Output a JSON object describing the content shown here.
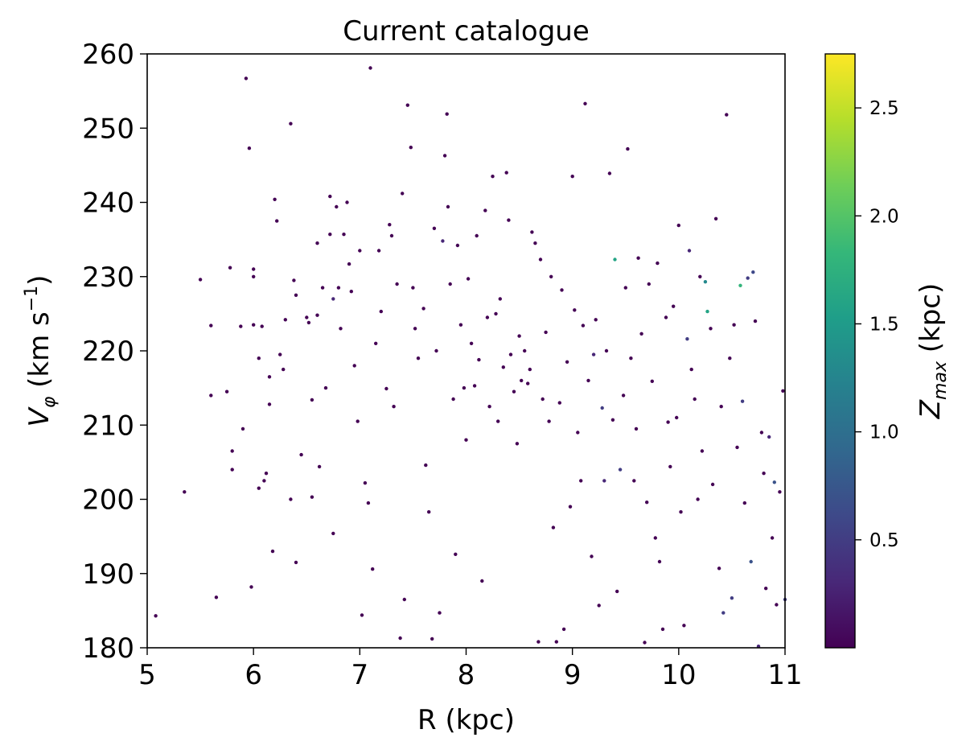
{
  "chart_data": {
    "type": "scatter",
    "title": "Current catalogue",
    "xlabel": "R (kpc)",
    "ylabel_main": "V",
    "ylabel_sub": "φ",
    "ylabel_units_pre": " (km s",
    "ylabel_units_sup": "−1",
    "ylabel_units_post": ")",
    "xlim": [
      5,
      11
    ],
    "ylim": [
      180,
      260
    ],
    "xticks": [
      5,
      6,
      7,
      8,
      9,
      10,
      11
    ],
    "yticks": [
      180,
      190,
      200,
      210,
      220,
      230,
      240,
      250,
      260
    ],
    "grid": false,
    "colorbar": {
      "label_main": "Z",
      "label_sub": "max",
      "label_units": " (kpc)",
      "range": [
        0,
        2.75
      ],
      "ticks": [
        "0.5",
        "1.0",
        "1.5",
        "2.0",
        "2.5"
      ],
      "colormap": "viridis",
      "stops": [
        "#440154",
        "#482878",
        "#3e4989",
        "#31688e",
        "#26828e",
        "#1f9e89",
        "#35b779",
        "#6ece58",
        "#b5de2b",
        "#fde725"
      ]
    },
    "marker_color_default": "#440154",
    "points": [
      [
        5.08,
        184.3,
        0.02
      ],
      [
        5.35,
        201.0,
        0.02
      ],
      [
        5.5,
        229.6,
        0.02
      ],
      [
        5.6,
        223.4,
        0.02
      ],
      [
        5.6,
        214.0,
        0.02
      ],
      [
        5.65,
        186.8,
        0.02
      ],
      [
        5.75,
        214.5,
        0.02
      ],
      [
        5.78,
        231.2,
        0.02
      ],
      [
        5.8,
        206.5,
        0.02
      ],
      [
        5.8,
        204.0,
        0.02
      ],
      [
        5.88,
        223.3,
        0.02
      ],
      [
        5.9,
        209.5,
        0.02
      ],
      [
        5.93,
        256.7,
        0.02
      ],
      [
        5.96,
        247.3,
        0.02
      ],
      [
        5.98,
        188.2,
        0.02
      ],
      [
        6.0,
        230.0,
        0.02
      ],
      [
        6.0,
        231.0,
        0.02
      ],
      [
        6.0,
        223.5,
        0.02
      ],
      [
        6.05,
        219.0,
        0.02
      ],
      [
        6.05,
        201.5,
        0.02
      ],
      [
        6.08,
        223.3,
        0.02
      ],
      [
        6.1,
        202.5,
        0.02
      ],
      [
        6.12,
        203.5,
        0.02
      ],
      [
        6.15,
        216.5,
        0.02
      ],
      [
        6.15,
        212.8,
        0.02
      ],
      [
        6.18,
        193.0,
        0.02
      ],
      [
        6.2,
        240.4,
        0.02
      ],
      [
        6.22,
        237.5,
        0.02
      ],
      [
        6.25,
        219.5,
        0.02
      ],
      [
        6.28,
        217.5,
        0.02
      ],
      [
        6.3,
        224.2,
        0.02
      ],
      [
        6.35,
        250.6,
        0.02
      ],
      [
        6.35,
        200.0,
        0.02
      ],
      [
        6.38,
        229.5,
        0.02
      ],
      [
        6.4,
        227.5,
        0.02
      ],
      [
        6.4,
        191.5,
        0.02
      ],
      [
        6.45,
        206.0,
        0.02
      ],
      [
        6.5,
        224.5,
        0.02
      ],
      [
        6.52,
        223.8,
        0.02
      ],
      [
        6.55,
        213.4,
        0.02
      ],
      [
        6.55,
        200.3,
        0.02
      ],
      [
        6.6,
        234.5,
        0.02
      ],
      [
        6.6,
        224.8,
        0.02
      ],
      [
        6.62,
        204.4,
        0.02
      ],
      [
        6.65,
        228.5,
        0.02
      ],
      [
        6.68,
        215.0,
        0.02
      ],
      [
        6.72,
        240.8,
        0.02
      ],
      [
        6.72,
        235.7,
        0.02
      ],
      [
        6.75,
        227.0,
        0.3
      ],
      [
        6.75,
        195.4,
        0.02
      ],
      [
        6.78,
        239.4,
        0.02
      ],
      [
        6.8,
        228.5,
        0.02
      ],
      [
        6.82,
        223.0,
        0.02
      ],
      [
        6.85,
        235.7,
        0.02
      ],
      [
        6.88,
        240.0,
        0.02
      ],
      [
        6.9,
        231.7,
        0.02
      ],
      [
        6.92,
        228.0,
        0.02
      ],
      [
        6.95,
        218.0,
        0.02
      ],
      [
        6.98,
        210.5,
        0.02
      ],
      [
        7.0,
        233.5,
        0.02
      ],
      [
        7.02,
        184.4,
        0.02
      ],
      [
        7.05,
        202.2,
        0.02
      ],
      [
        7.08,
        199.5,
        0.02
      ],
      [
        7.1,
        258.1,
        0.02
      ],
      [
        7.12,
        190.6,
        0.02
      ],
      [
        7.15,
        221.0,
        0.02
      ],
      [
        7.18,
        233.5,
        0.02
      ],
      [
        7.2,
        225.3,
        0.02
      ],
      [
        7.25,
        214.9,
        0.02
      ],
      [
        7.28,
        237.0,
        0.02
      ],
      [
        7.3,
        235.5,
        0.02
      ],
      [
        7.32,
        212.5,
        0.02
      ],
      [
        7.35,
        229.0,
        0.02
      ],
      [
        7.38,
        181.3,
        0.02
      ],
      [
        7.4,
        241.2,
        0.02
      ],
      [
        7.42,
        186.5,
        0.02
      ],
      [
        7.45,
        253.1,
        0.02
      ],
      [
        7.48,
        247.4,
        0.02
      ],
      [
        7.5,
        228.5,
        0.02
      ],
      [
        7.52,
        223.0,
        0.02
      ],
      [
        7.55,
        219.0,
        0.02
      ],
      [
        7.6,
        225.7,
        0.02
      ],
      [
        7.62,
        204.6,
        0.02
      ],
      [
        7.65,
        198.3,
        0.02
      ],
      [
        7.68,
        181.2,
        0.02
      ],
      [
        7.7,
        236.5,
        0.02
      ],
      [
        7.72,
        220.0,
        0.02
      ],
      [
        7.75,
        184.7,
        0.02
      ],
      [
        7.78,
        234.8,
        0.3
      ],
      [
        7.8,
        246.3,
        0.02
      ],
      [
        7.82,
        251.9,
        0.02
      ],
      [
        7.83,
        239.4,
        0.02
      ],
      [
        7.85,
        229.0,
        0.02
      ],
      [
        7.88,
        213.5,
        0.02
      ],
      [
        7.9,
        192.6,
        0.02
      ],
      [
        7.92,
        234.2,
        0.02
      ],
      [
        7.95,
        223.5,
        0.02
      ],
      [
        7.98,
        215.0,
        0.02
      ],
      [
        8.0,
        208.0,
        0.02
      ],
      [
        8.02,
        229.7,
        0.02
      ],
      [
        8.05,
        221.0,
        0.02
      ],
      [
        8.08,
        215.3,
        0.02
      ],
      [
        8.1,
        235.5,
        0.02
      ],
      [
        8.12,
        218.8,
        0.02
      ],
      [
        8.15,
        189.0,
        0.02
      ],
      [
        8.18,
        238.9,
        0.02
      ],
      [
        8.2,
        224.5,
        0.02
      ],
      [
        8.22,
        212.5,
        0.02
      ],
      [
        8.25,
        243.5,
        0.02
      ],
      [
        8.28,
        225.0,
        0.02
      ],
      [
        8.3,
        210.5,
        0.02
      ],
      [
        8.32,
        227.0,
        0.02
      ],
      [
        8.35,
        217.8,
        0.02
      ],
      [
        8.38,
        244.0,
        0.02
      ],
      [
        8.4,
        237.6,
        0.02
      ],
      [
        8.42,
        219.5,
        0.02
      ],
      [
        8.45,
        214.5,
        0.02
      ],
      [
        8.48,
        207.5,
        0.02
      ],
      [
        8.5,
        222.0,
        0.02
      ],
      [
        8.52,
        216.0,
        0.02
      ],
      [
        8.55,
        220.0,
        0.02
      ],
      [
        8.58,
        215.6,
        0.02
      ],
      [
        8.6,
        217.5,
        0.02
      ],
      [
        8.62,
        236.0,
        0.02
      ],
      [
        8.65,
        234.5,
        0.02
      ],
      [
        8.68,
        180.8,
        0.02
      ],
      [
        8.7,
        232.3,
        0.02
      ],
      [
        8.72,
        213.5,
        0.02
      ],
      [
        8.75,
        222.5,
        0.02
      ],
      [
        8.78,
        210.5,
        0.02
      ],
      [
        8.8,
        230.0,
        0.02
      ],
      [
        8.82,
        196.2,
        0.02
      ],
      [
        8.85,
        180.8,
        0.02
      ],
      [
        8.88,
        213.0,
        0.02
      ],
      [
        8.9,
        228.2,
        0.02
      ],
      [
        8.92,
        182.5,
        0.02
      ],
      [
        8.95,
        218.5,
        0.02
      ],
      [
        8.98,
        199.0,
        0.02
      ],
      [
        9.0,
        243.5,
        0.02
      ],
      [
        9.02,
        225.5,
        0.02
      ],
      [
        9.05,
        209.0,
        0.02
      ],
      [
        9.08,
        202.5,
        0.02
      ],
      [
        9.1,
        223.4,
        0.02
      ],
      [
        9.12,
        253.3,
        0.02
      ],
      [
        9.15,
        216.0,
        0.02
      ],
      [
        9.18,
        192.3,
        0.02
      ],
      [
        9.2,
        219.5,
        0.3
      ],
      [
        9.22,
        224.2,
        0.02
      ],
      [
        9.25,
        185.7,
        0.02
      ],
      [
        9.28,
        212.3,
        0.5
      ],
      [
        9.3,
        202.5,
        0.3
      ],
      [
        9.32,
        220.0,
        0.02
      ],
      [
        9.35,
        243.9,
        0.02
      ],
      [
        9.38,
        210.7,
        0.02
      ],
      [
        9.4,
        232.3,
        1.6
      ],
      [
        9.42,
        187.6,
        0.02
      ],
      [
        9.45,
        204.0,
        0.5
      ],
      [
        9.48,
        214.0,
        0.02
      ],
      [
        9.5,
        228.5,
        0.02
      ],
      [
        9.52,
        247.2,
        0.02
      ],
      [
        9.55,
        219.0,
        0.02
      ],
      [
        9.58,
        202.5,
        0.02
      ],
      [
        9.6,
        209.5,
        0.02
      ],
      [
        9.62,
        232.5,
        0.02
      ],
      [
        9.65,
        222.3,
        0.02
      ],
      [
        9.68,
        180.7,
        0.02
      ],
      [
        9.7,
        199.6,
        0.02
      ],
      [
        9.72,
        229.0,
        0.02
      ],
      [
        9.75,
        215.9,
        0.02
      ],
      [
        9.78,
        194.8,
        0.02
      ],
      [
        9.8,
        231.8,
        0.02
      ],
      [
        9.82,
        191.6,
        0.02
      ],
      [
        9.85,
        182.5,
        0.02
      ],
      [
        9.88,
        224.5,
        0.02
      ],
      [
        9.9,
        210.4,
        0.02
      ],
      [
        9.92,
        204.4,
        0.02
      ],
      [
        9.95,
        226.0,
        0.02
      ],
      [
        9.98,
        211.0,
        0.02
      ],
      [
        10.0,
        236.9,
        0.02
      ],
      [
        10.02,
        198.3,
        0.02
      ],
      [
        10.05,
        183.0,
        0.02
      ],
      [
        10.08,
        221.6,
        0.5
      ],
      [
        10.1,
        233.5,
        0.3
      ],
      [
        10.12,
        217.5,
        0.02
      ],
      [
        10.15,
        213.5,
        0.02
      ],
      [
        10.18,
        200.0,
        0.02
      ],
      [
        10.2,
        230.0,
        0.02
      ],
      [
        10.22,
        206.5,
        0.02
      ],
      [
        10.25,
        229.3,
        1.3
      ],
      [
        10.27,
        225.3,
        1.6
      ],
      [
        10.3,
        223.0,
        0.02
      ],
      [
        10.32,
        202.0,
        0.02
      ],
      [
        10.35,
        237.8,
        0.02
      ],
      [
        10.38,
        190.7,
        0.02
      ],
      [
        10.4,
        212.5,
        0.02
      ],
      [
        10.42,
        184.7,
        0.5
      ],
      [
        10.45,
        251.8,
        0.02
      ],
      [
        10.48,
        219.0,
        0.02
      ],
      [
        10.5,
        186.7,
        0.5
      ],
      [
        10.52,
        223.5,
        0.02
      ],
      [
        10.55,
        207.0,
        0.02
      ],
      [
        10.58,
        228.8,
        1.8
      ],
      [
        10.6,
        213.2,
        0.5
      ],
      [
        10.62,
        199.5,
        0.02
      ],
      [
        10.65,
        229.8,
        0.5
      ],
      [
        10.68,
        191.6,
        0.7
      ],
      [
        10.7,
        230.6,
        0.6
      ],
      [
        10.72,
        224.0,
        0.02
      ],
      [
        10.75,
        180.2,
        0.3
      ],
      [
        10.78,
        209.0,
        0.02
      ],
      [
        10.8,
        203.5,
        0.02
      ],
      [
        10.82,
        188.0,
        0.02
      ],
      [
        10.85,
        208.4,
        0.3
      ],
      [
        10.88,
        194.8,
        0.02
      ],
      [
        10.9,
        202.3,
        0.7
      ],
      [
        10.92,
        185.8,
        0.02
      ],
      [
        10.95,
        201.0,
        0.02
      ],
      [
        10.98,
        214.6,
        0.02
      ],
      [
        11.0,
        186.5,
        0.5
      ]
    ]
  }
}
